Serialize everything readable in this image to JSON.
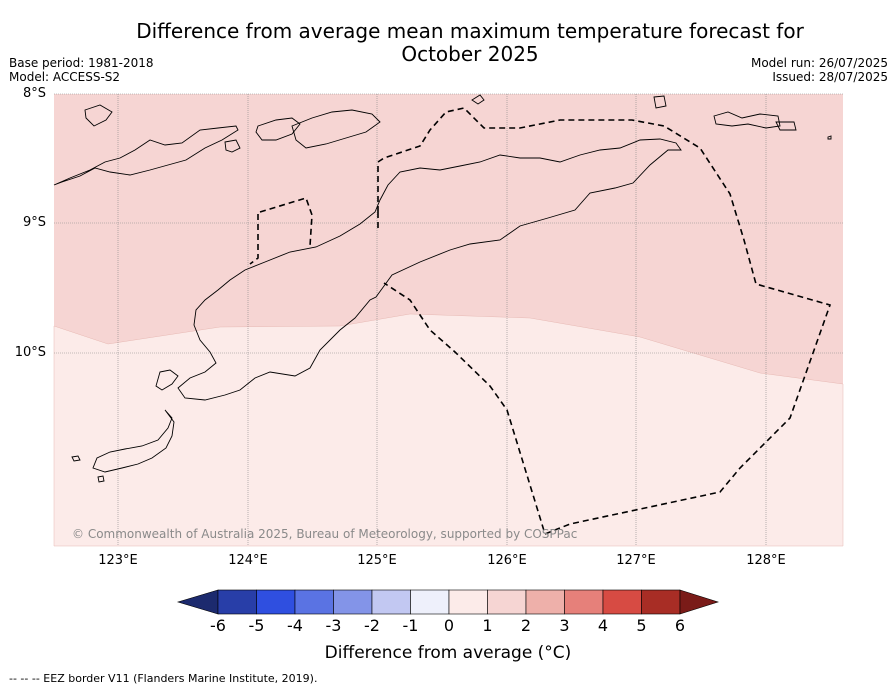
{
  "title_line1": "Difference from average mean maximum temperature forecast for",
  "title_line2": "October 2025",
  "meta_left": [
    "Base period: 1981-2018",
    "Model: ACCESS-S2"
  ],
  "meta_right": [
    "Model run: 26/07/2025",
    "Issued: 28/07/2025"
  ],
  "lat_labels": [
    "8°S",
    "9°S",
    "10°S"
  ],
  "lon_labels": [
    "123°E",
    "124°E",
    "125°E",
    "126°E",
    "127°E",
    "128°E"
  ],
  "copyright": "© Commonwealth of Australia 2025, Bureau of Meteorology, supported by COSPPac",
  "colorbar": {
    "ticks": [
      "-6",
      "-5",
      "-4",
      "-3",
      "-2",
      "-1",
      "0",
      "1",
      "2",
      "3",
      "4",
      "5",
      "6"
    ],
    "colors": [
      "#1c2a6e",
      "#283ea8",
      "#2f4fe0",
      "#5a73e3",
      "#8394e8",
      "#c2c8f2",
      "#eef0fb",
      "#fcebe9",
      "#f6d5d3",
      "#eeb0aa",
      "#e6807a",
      "#d74b43",
      "#a82d25",
      "#7a1b18"
    ],
    "label": "Difference from average (°C)"
  },
  "map_fill_colors": {
    "band_0_1": "#fcebe9",
    "band_1_2": "#f6d5d3"
  },
  "footnote": "--  --  -- EEZ border V11 (Flanders Marine Institute, 2019)."
}
